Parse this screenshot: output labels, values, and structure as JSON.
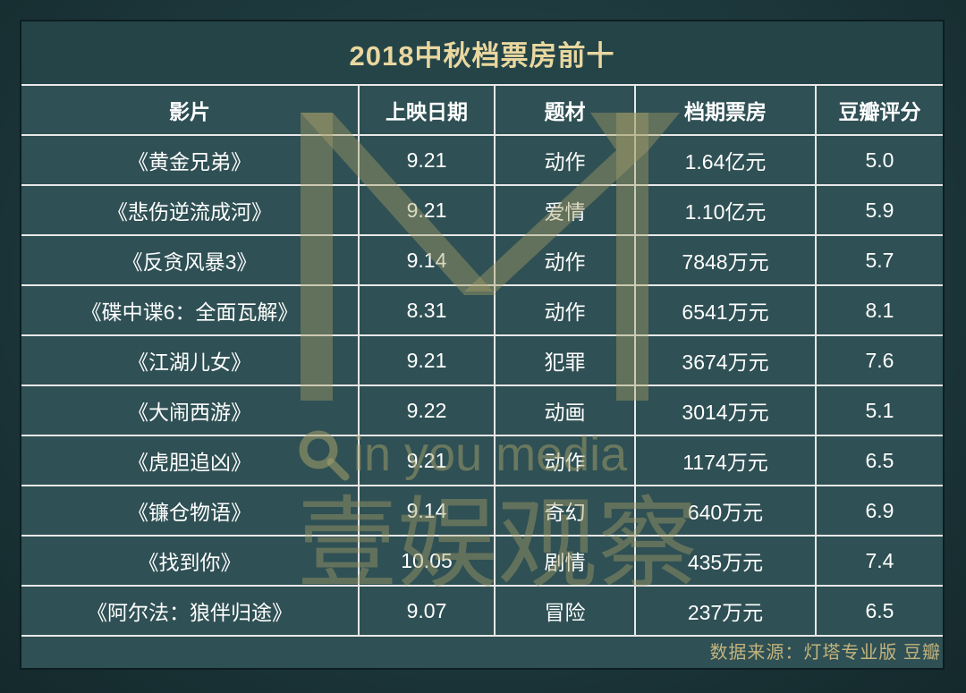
{
  "title": "2018中秋档票房前十",
  "headers": [
    "影片",
    "上映日期",
    "题材",
    "档期票房",
    "豆瓣评分"
  ],
  "rows": [
    [
      "《黄金兄弟》",
      "9.21",
      "动作",
      "1.64亿元",
      "5.0"
    ],
    [
      "《悲伤逆流成河》",
      "9.21",
      "爱情",
      "1.10亿元",
      "5.9"
    ],
    [
      "《反贪风暴3》",
      "9.14",
      "动作",
      "7848万元",
      "5.7"
    ],
    [
      "《碟中谍6：全面瓦解》",
      "8.31",
      "动作",
      "6541万元",
      "8.1"
    ],
    [
      "《江湖儿女》",
      "9.21",
      "犯罪",
      "3674万元",
      "7.6"
    ],
    [
      "《大闹西游》",
      "9.22",
      "动画",
      "3014万元",
      "5.1"
    ],
    [
      "《虎胆追凶》",
      "9.21",
      "动作",
      "1174万元",
      "6.5"
    ],
    [
      "《镰仓物语》",
      "9.14",
      "奇幻",
      "640万元",
      "6.9"
    ],
    [
      "《找到你》",
      "10.05",
      "剧情",
      "435万元",
      "7.4"
    ],
    [
      "《阿尔法：狼伴归途》",
      "9.07",
      "冒险",
      "237万元",
      "6.5"
    ]
  ],
  "watermark": {
    "latin": "in you media",
    "chinese": "壹娱观察"
  },
  "source": "数据来源：灯塔专业版 豆瓣",
  "colors": {
    "background": "#1d383c",
    "table": "#2f5054",
    "title": "#e9d7a0",
    "watermark": "#a6a06a",
    "source": "#c3b37e"
  }
}
